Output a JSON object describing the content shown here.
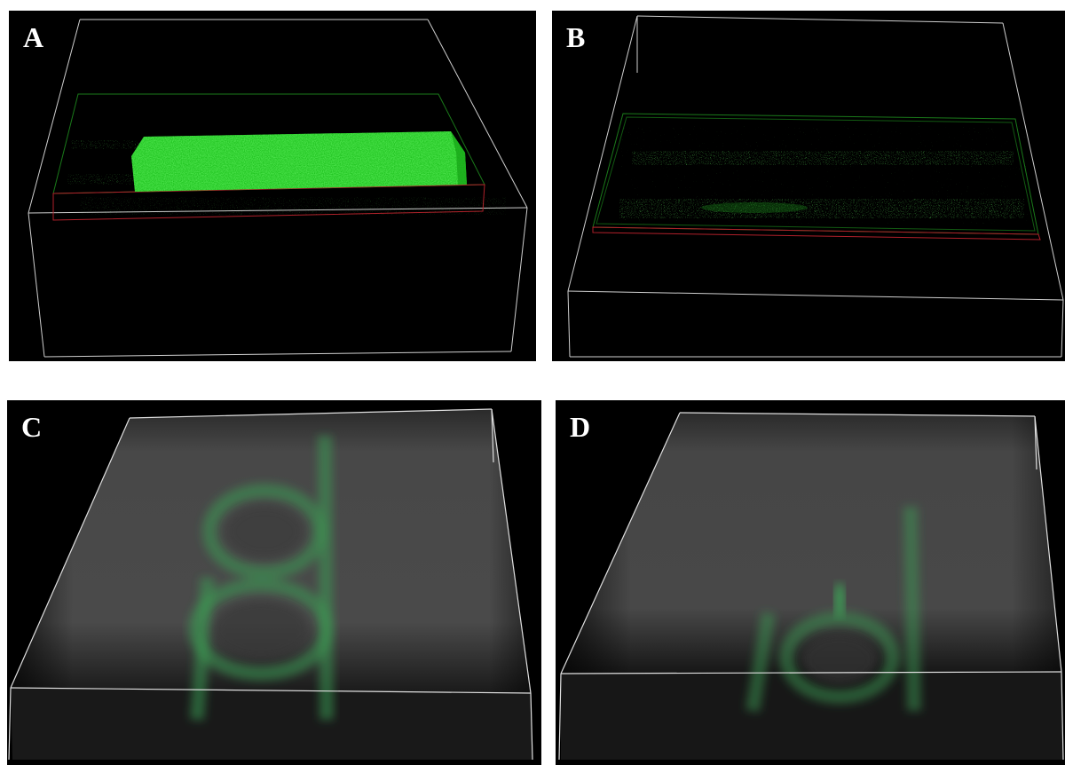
{
  "panels": [
    {
      "id": "A",
      "label": "A"
    },
    {
      "id": "B",
      "label": "B"
    },
    {
      "id": "C",
      "label": "C"
    },
    {
      "id": "D",
      "label": "D"
    }
  ],
  "colors": {
    "background": "#000000",
    "fluorescence": "#22d822",
    "box_edge": "#d8d8d8",
    "stage_red": "#c0202a",
    "stage_green": "#1a8a1a",
    "volume_gray": "#4a4a4a"
  }
}
